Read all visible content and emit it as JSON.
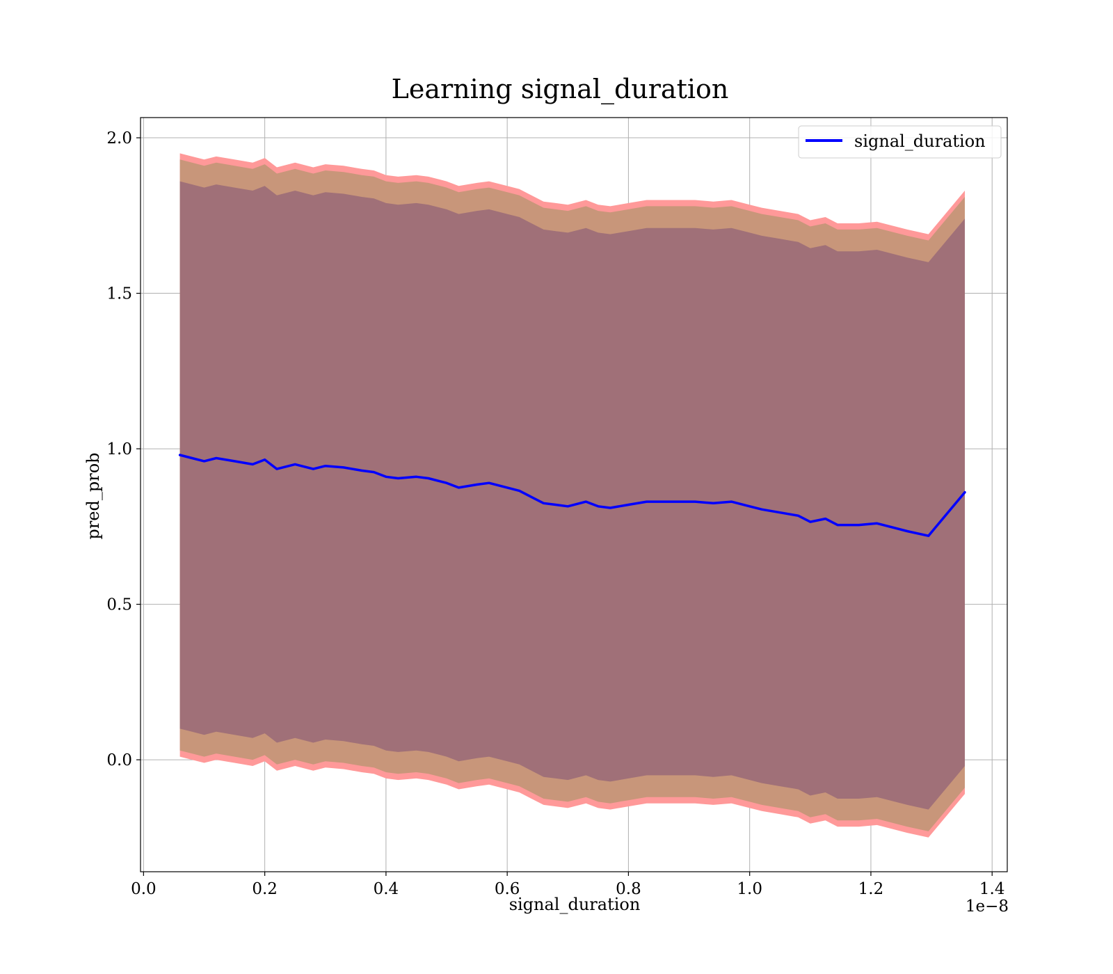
{
  "chart_data": {
    "type": "area",
    "title": "Learning signal_duration",
    "xlabel": "signal_duration",
    "ylabel": "pred_prob",
    "x_offset_label": "1e−8",
    "xlim": [
      -0.005,
      1.425
    ],
    "ylim": [
      -0.36,
      2.065
    ],
    "xticks": [
      0.0,
      0.2,
      0.4,
      0.6,
      0.8,
      1.0,
      1.2,
      1.4
    ],
    "xtick_labels": [
      "0.0",
      "0.2",
      "0.4",
      "0.6",
      "0.8",
      "1.0",
      "1.2",
      "1.4"
    ],
    "yticks": [
      0.0,
      0.5,
      1.0,
      1.5,
      2.0
    ],
    "ytick_labels": [
      "0.0",
      "0.5",
      "1.0",
      "1.5",
      "2.0"
    ],
    "grid": true,
    "legend_position": "top-right",
    "colors": {
      "line": "#0000ff",
      "band_outer": "#ff9999",
      "band_middle": "#c8967a",
      "band_inner": "#a07078"
    },
    "x": [
      0.06,
      0.08,
      0.1,
      0.12,
      0.15,
      0.18,
      0.2,
      0.22,
      0.25,
      0.28,
      0.3,
      0.33,
      0.36,
      0.38,
      0.4,
      0.42,
      0.45,
      0.47,
      0.5,
      0.52,
      0.55,
      0.57,
      0.6,
      0.62,
      0.64,
      0.66,
      0.68,
      0.7,
      0.73,
      0.75,
      0.77,
      0.8,
      0.83,
      0.86,
      0.88,
      0.91,
      0.94,
      0.97,
      1.0,
      1.02,
      1.05,
      1.08,
      1.1,
      1.125,
      1.145,
      1.18,
      1.21,
      1.26,
      1.295,
      1.355
    ],
    "series": [
      {
        "name": "signal_duration",
        "values": [
          0.98,
          0.97,
          0.96,
          0.97,
          0.96,
          0.95,
          0.965,
          0.935,
          0.95,
          0.935,
          0.945,
          0.94,
          0.93,
          0.925,
          0.91,
          0.905,
          0.91,
          0.905,
          0.89,
          0.875,
          0.885,
          0.89,
          0.875,
          0.865,
          0.845,
          0.825,
          0.82,
          0.815,
          0.83,
          0.815,
          0.81,
          0.82,
          0.83,
          0.83,
          0.83,
          0.83,
          0.825,
          0.83,
          0.815,
          0.805,
          0.795,
          0.785,
          0.765,
          0.775,
          0.755,
          0.755,
          0.76,
          0.735,
          0.72,
          0.86
        ]
      }
    ],
    "band_half_widths": [
      0.97,
      0.95,
      0.88
    ]
  }
}
